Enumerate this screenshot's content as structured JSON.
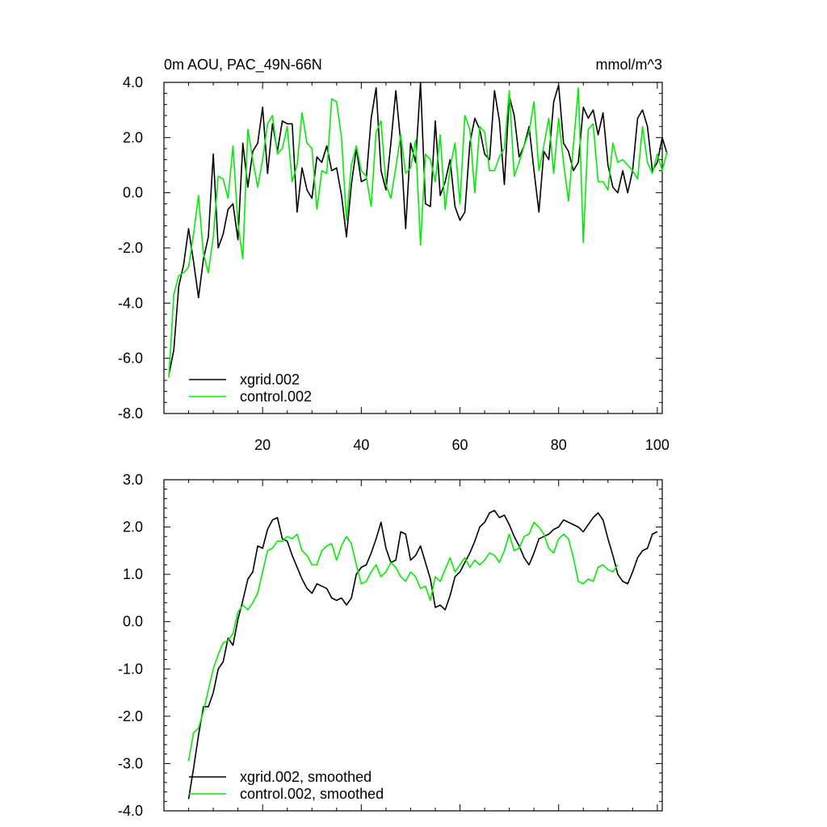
{
  "chart_data": [
    {
      "type": "line",
      "title": "0m AOU, PAC_49N-66N",
      "units": "mmol/m^3",
      "xlim": [
        0,
        101
      ],
      "ylim": [
        -8,
        4
      ],
      "x_ticks": [
        20,
        40,
        60,
        80,
        100
      ],
      "x_tick_labels": [
        "20",
        "40",
        "60",
        "80",
        "100"
      ],
      "y_ticks": [
        -8,
        -6,
        -4,
        -2,
        0,
        2,
        4
      ],
      "y_tick_labels": [
        "-8.0",
        "-6.0",
        "-4.0",
        "-2.0",
        "0.0",
        "2.0",
        "4.0"
      ],
      "legend": [
        "xgrid.002",
        "control.002"
      ],
      "legend_position": "bottom-left",
      "series": [
        {
          "name": "xgrid.002",
          "color": "#000000",
          "x_start": 1,
          "values": [
            -6.6,
            -5.7,
            -3.4,
            -2.6,
            -1.3,
            -2.5,
            -3.8,
            -2.4,
            -1.6,
            1.4,
            -2.0,
            -1.5,
            -0.6,
            -0.4,
            -1.7,
            1.8,
            0.2,
            1.5,
            1.8,
            3.1,
            0.7,
            2.5,
            1.5,
            2.6,
            2.5,
            2.5,
            -0.7,
            0.9,
            0.1,
            -0.2,
            1.3,
            1.1,
            1.7,
            0.8,
            0.9,
            -0.1,
            -1.6,
            0.3,
            1.6,
            0.4,
            0.5,
            2.7,
            3.8,
            0.8,
            0.1,
            1.8,
            3.7,
            1.8,
            -1.3,
            1.8,
            1.1,
            4.0,
            -0.4,
            -0.5,
            2.6,
            -0.1,
            0.4,
            1.2,
            -0.5,
            -1.0,
            -0.7,
            1.8,
            2.7,
            2.3,
            1.4,
            1.2,
            3.7,
            2.6,
            0.3,
            3.5,
            2.8,
            1.3,
            1.7,
            2.4,
            0.8,
            -0.7,
            1.5,
            1.2,
            3.3,
            3.9,
            1.8,
            1.5,
            0.8,
            1.1,
            3.1,
            2.7,
            3.0,
            2.1,
            2.9,
            1.0,
            0.2,
            0.0,
            0.8,
            0.0,
            0.8,
            2.7,
            3.0,
            2.4,
            0.8,
            1.1,
            2.0,
            1.4
          ]
        },
        {
          "name": "control.002",
          "color": "#00ee00",
          "x_start": 1,
          "values": [
            -6.7,
            -3.7,
            -3.0,
            -2.9,
            -2.7,
            -1.5,
            -0.1,
            -2.2,
            -2.9,
            -1.6,
            0.6,
            0.5,
            -0.2,
            1.7,
            -1.1,
            -2.4,
            2.3,
            1.2,
            0.2,
            1.2,
            2.5,
            2.8,
            1.4,
            1.6,
            2.4,
            0.4,
            1.0,
            2.9,
            1.8,
            1.6,
            -0.6,
            0.8,
            0.7,
            3.4,
            3.3,
            2.0,
            -1.0,
            1.0,
            1.7,
            0.8,
            0.6,
            -0.5,
            2.2,
            2.6,
            0.3,
            -0.2,
            0.9,
            2.1,
            0.7,
            0.9,
            1.9,
            -1.9,
            1.4,
            1.2,
            0.4,
            2.1,
            -0.6,
            0.9,
            1.8,
            -0.4,
            2.8,
            2.3,
            0.0,
            2.4,
            2.2,
            0.8,
            0.8,
            1.3,
            1.6,
            3.7,
            0.6,
            1.1,
            1.7,
            2.2,
            3.3,
            0.8,
            1.7,
            2.7,
            0.7,
            2.7,
            1.1,
            -0.3,
            1.7,
            3.8,
            -1.8,
            2.3,
            2.5,
            0.4,
            0.4,
            0.1,
            1.8,
            1.1,
            1.2,
            1.0,
            0.8,
            0.5,
            2.4,
            1.1,
            0.7,
            1.4,
            0.8,
            1.5
          ]
        }
      ]
    },
    {
      "type": "line",
      "title": "",
      "xlim": [
        0,
        101
      ],
      "ylim": [
        -4,
        3
      ],
      "x_ticks": [
        20,
        40,
        60,
        80,
        100
      ],
      "x_tick_labels": [],
      "y_ticks": [
        -4,
        -3,
        -2,
        -1,
        0,
        1,
        2,
        3
      ],
      "y_tick_labels": [
        "-4.0",
        "-3.0",
        "-2.0",
        "-1.0",
        "0.0",
        "1.0",
        "2.0",
        "3.0"
      ],
      "legend": [
        "xgrid.002, smoothed",
        "control.002, smoothed"
      ],
      "legend_position": "bottom-left",
      "series": [
        {
          "name": "xgrid.002, smoothed",
          "color": "#000000",
          "x_start": 5,
          "values": [
            -3.75,
            -3.1,
            -2.4,
            -1.8,
            -1.8,
            -1.5,
            -1.0,
            -0.85,
            -0.35,
            -0.5,
            0.05,
            0.45,
            0.9,
            1.05,
            1.6,
            1.55,
            1.95,
            2.15,
            2.2,
            1.75,
            1.7,
            1.4,
            1.15,
            0.9,
            0.7,
            0.6,
            0.8,
            0.75,
            0.7,
            0.5,
            0.45,
            0.5,
            0.35,
            0.5,
            1.0,
            1.15,
            1.2,
            1.45,
            1.75,
            2.1,
            1.55,
            1.25,
            1.3,
            1.9,
            1.85,
            1.3,
            1.4,
            1.6,
            1.25,
            0.9,
            0.3,
            0.35,
            0.25,
            0.55,
            0.95,
            1.05,
            1.25,
            1.45,
            1.7,
            2.0,
            2.1,
            2.3,
            2.35,
            2.2,
            2.25,
            2.05,
            1.8,
            1.6,
            1.35,
            1.2,
            1.45,
            1.75,
            1.8,
            1.85,
            1.95,
            2.0,
            2.15,
            2.1,
            2.05,
            2.0,
            1.9,
            2.05,
            2.2,
            2.3,
            2.15,
            1.75,
            1.4,
            1.0,
            0.85,
            0.8,
            1.05,
            1.35,
            1.5,
            1.55,
            1.85,
            1.9
          ]
        },
        {
          "name": "control.002, smoothed",
          "color": "#00ee00",
          "x_start": 5,
          "values": [
            -2.95,
            -2.35,
            -2.25,
            -1.9,
            -1.45,
            -1.0,
            -0.7,
            -0.45,
            -0.4,
            -0.25,
            0.2,
            0.35,
            0.25,
            0.4,
            0.6,
            1.05,
            1.5,
            1.55,
            1.7,
            1.7,
            1.8,
            1.75,
            1.85,
            1.5,
            1.4,
            1.2,
            1.2,
            1.5,
            1.6,
            1.65,
            1.3,
            1.6,
            1.8,
            1.65,
            1.2,
            0.8,
            0.85,
            1.05,
            1.2,
            0.95,
            1.05,
            1.25,
            1.15,
            0.95,
            0.85,
            1.05,
            0.95,
            0.7,
            0.75,
            0.45,
            0.95,
            0.85,
            1.1,
            1.35,
            1.05,
            1.2,
            1.35,
            1.15,
            1.3,
            1.2,
            1.3,
            1.45,
            1.4,
            1.25,
            1.5,
            1.85,
            1.5,
            1.55,
            1.8,
            1.85,
            2.1,
            2.0,
            1.85,
            1.55,
            1.45,
            1.75,
            1.85,
            1.75,
            1.35,
            0.85,
            0.8,
            0.9,
            0.85,
            1.15,
            1.2,
            1.1,
            1.05,
            1.2
          ]
        }
      ]
    }
  ]
}
